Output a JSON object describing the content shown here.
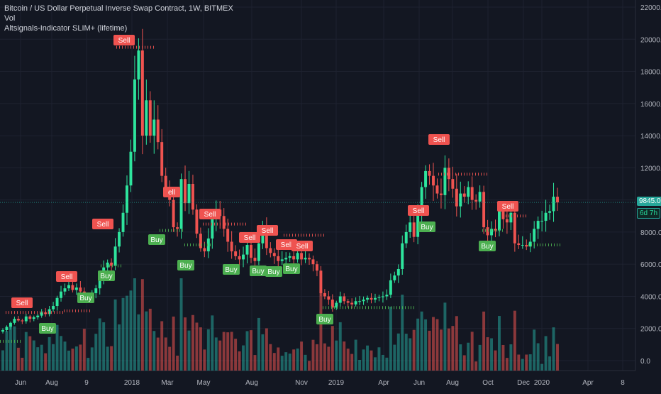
{
  "legend": {
    "symbol": "Bitcoin / US Dollar Perpetual Inverse Swap Contract, 1W, BITMEX",
    "volume": "Vol",
    "indicator": "Altsignals-Indicator SLIM+ (lifetime)"
  },
  "price_axis": {
    "ticks": [
      "22000.0",
      "20000.0",
      "18000.0",
      "16000.0",
      "14000.0",
      "12000.0",
      "10000.0",
      "8000.0",
      "6000.0",
      "4000.0",
      "2000.0",
      "0.0"
    ],
    "last_price": "9845.0",
    "countdown": "6d 7h"
  },
  "time_axis": {
    "ticks": [
      "Jun",
      "Aug",
      "9",
      "2018",
      "Mar",
      "May",
      "Aug",
      "Nov",
      "2019",
      "Apr",
      "Jun",
      "Aug",
      "Oct",
      "Dec",
      "2020",
      "Apr",
      "8"
    ]
  },
  "colors": {
    "background": "#131722",
    "up": "#26a69a",
    "up_candle": "#2ee59d",
    "down": "#ef5350",
    "grid": "#1e2230",
    "buy_label_bg": "#4caf50",
    "sell_label_bg": "#ef5350",
    "sell_level": "#ef5350",
    "buy_level": "#4caf50"
  },
  "chart_data": {
    "type": "candlestick",
    "interval": "1W",
    "ylim": [
      0,
      22000
    ],
    "series_notes": "Weekly BTC/USD candles with volume histogram and buy/sell signal markers",
    "closes": [
      1900,
      2100,
      2350,
      2600,
      2500,
      2450,
      2750,
      2600,
      2700,
      2800,
      3000,
      2900,
      3200,
      3400,
      3900,
      4300,
      4500,
      4700,
      4400,
      4550,
      4300,
      3900,
      3950,
      4200,
      4500,
      5100,
      5800,
      6100,
      5900,
      7100,
      8000,
      9200,
      10900,
      13000,
      17500,
      19300,
      14000,
      16200,
      14000,
      15000,
      13600,
      11500,
      10800,
      10000,
      8300,
      8200,
      11300,
      9800,
      11000,
      9400,
      7900,
      7000,
      6800,
      7600,
      8800,
      9400,
      9000,
      8200,
      7400,
      6800,
      6500,
      6300,
      6600,
      7200,
      6400,
      6200,
      7300,
      8200,
      7000,
      6700,
      6500,
      6200,
      6300,
      6400,
      6500,
      6300,
      6700,
      6300,
      6400,
      6300,
      6000,
      5600,
      4200,
      4000,
      3800,
      3300,
      3600,
      4000,
      3700,
      3600,
      3500,
      3700,
      3700,
      3800,
      3900,
      3800,
      3900,
      3950,
      4000,
      4100,
      5000,
      5300,
      5700,
      7300,
      8000,
      8600,
      7700,
      9100,
      10800,
      11800,
      11500,
      10900,
      10400,
      10300,
      12000,
      11300,
      10700,
      9600,
      10400,
      10200,
      10800,
      10000,
      9900,
      10500,
      8300,
      7800,
      8200,
      8100,
      9300,
      8800,
      8600,
      9200,
      7300,
      7200,
      7200,
      7100,
      7400,
      8200,
      8700,
      8700,
      9200,
      9300,
      10200,
      9845
    ],
    "volume_max": 5200,
    "signals": {
      "sell": [
        "Sell",
        "Sell",
        "Sell",
        "ell",
        "Sell",
        "Sell",
        "Sell",
        "Sell",
        "Sell",
        "Sell",
        "Sell",
        "Sell",
        "Sell"
      ],
      "buy": [
        "Buy",
        "Buy",
        "Buy",
        "Buy",
        "Buy",
        "Buy",
        "Buy",
        "Buy",
        "Buy",
        "Buy",
        "Buy",
        "Buy"
      ]
    },
    "sell_level_prices": [
      19500,
      11600,
      9000,
      8500,
      7800,
      3000,
      7400
    ],
    "buy_level_prices": [
      5900,
      3300,
      8100,
      7100,
      1200
    ]
  }
}
